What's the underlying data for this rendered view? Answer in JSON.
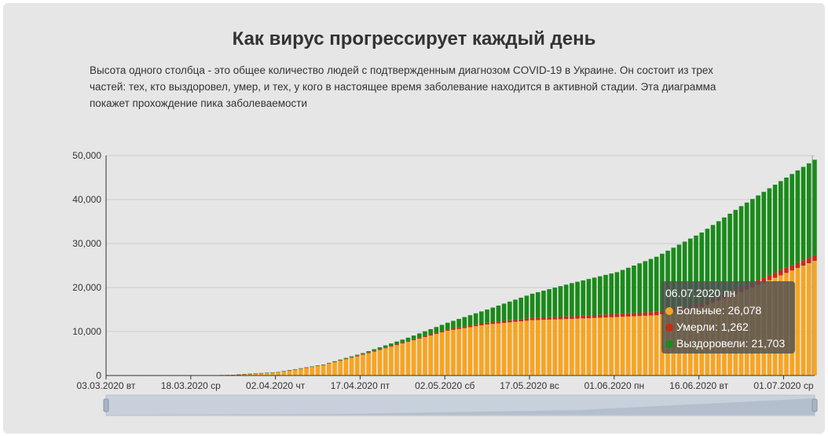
{
  "header": {
    "title": "Как вирус прогрессирует каждый день",
    "description": "Высота одного столбца - это общее количество людей с подтвержденным диагнозом COVID-19 в Украине. Он состоит из трех частей: тех, кто выздоровел, умер, и тех, у кого в настоящее время заболевание находится в активной стадии. Эта диаграмма покажет прохождение пика заболеваемости"
  },
  "tooltip": {
    "date": "06.07.2020 пн",
    "rows": [
      {
        "label": "Больные: 26,078",
        "color": "#f7a520"
      },
      {
        "label": "Умерли: 1,262",
        "color": "#c62c16"
      },
      {
        "label": "Выздоровели: 21,703",
        "color": "#1a8a1a"
      }
    ]
  },
  "chart_data": {
    "type": "bar",
    "stacked": true,
    "x_start": "2020-03-03",
    "x_end": "2020-07-06",
    "x_ticks": [
      "03.03.2020 вт",
      "18.03.2020 ср",
      "02.04.2020 чт",
      "17.04.2020 пт",
      "02.05.2020 сб",
      "17.05.2020 вс",
      "01.06.2020 пн",
      "16.06.2020 вт",
      "01.07.2020 ср"
    ],
    "y_ticks": [
      "0",
      "10,000",
      "20,000",
      "30,000",
      "40,000",
      "50,000"
    ],
    "ylim": [
      0,
      50000
    ],
    "grid": true,
    "colors": {
      "active": "#f7a520",
      "deaths": "#c62c16",
      "recovered": "#1a8a1a"
    },
    "series_names": [
      "Больные",
      "Умерли",
      "Выздоровели"
    ],
    "anchor_dates": [
      "2020-03-03",
      "2020-03-18",
      "2020-03-25",
      "2020-04-02",
      "2020-04-10",
      "2020-04-17",
      "2020-04-25",
      "2020-05-02",
      "2020-05-09",
      "2020-05-17",
      "2020-05-24",
      "2020-06-01",
      "2020-06-08",
      "2020-06-16",
      "2020-06-23",
      "2020-07-01",
      "2020-07-06"
    ],
    "anchor_totals": [
      1,
      16,
      150,
      800,
      2500,
      5100,
      8600,
      12000,
      15000,
      18600,
      21000,
      23500,
      27000,
      32500,
      38500,
      45000,
      49043
    ],
    "anchor_deaths": [
      0,
      0,
      5,
      22,
      70,
      140,
      240,
      320,
      400,
      530,
      630,
      700,
      800,
      920,
      1050,
      1180,
      1262
    ],
    "anchor_recovered": [
      0,
      0,
      0,
      10,
      60,
      250,
      700,
      1500,
      3000,
      5500,
      7500,
      9500,
      12500,
      16000,
      18500,
      20500,
      21703
    ]
  }
}
